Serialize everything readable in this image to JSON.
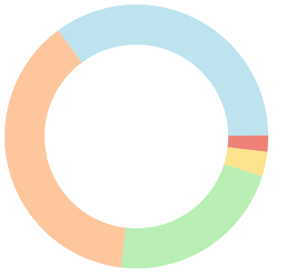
{
  "chart_data": {
    "type": "donut",
    "values": [
      35,
      2,
      3,
      22,
      38
    ],
    "colors": [
      "#bde3ef",
      "#ee8277",
      "#fde38d",
      "#b9efb5",
      "#fdc69d"
    ]
  }
}
